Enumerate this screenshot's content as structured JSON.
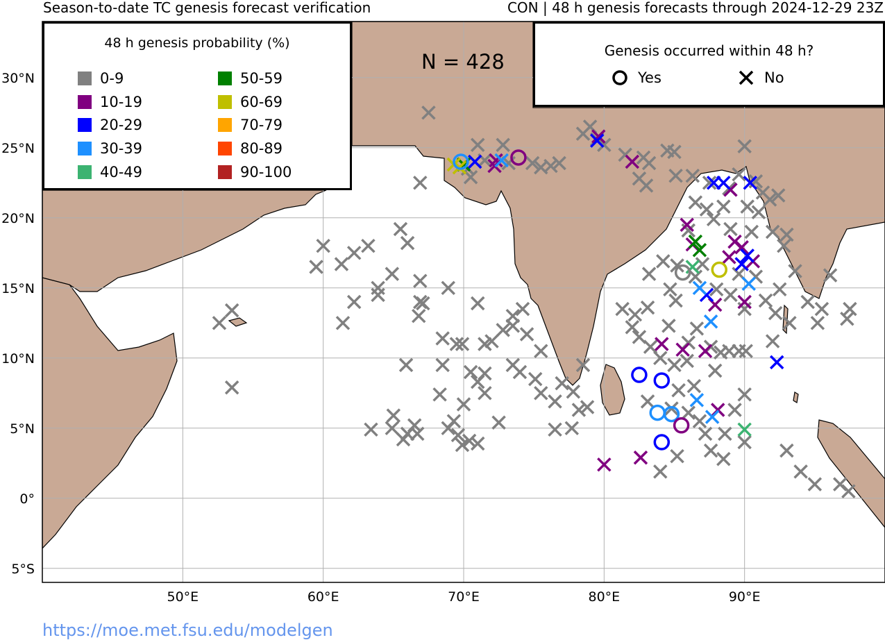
{
  "title_left": "Season-to-date TC genesis forecast verification",
  "title_right": "CON | 48 h genesis forecasts through 2024-12-29 23Z",
  "count_label": "N = 428",
  "url": "https://moe.met.fsu.edu/modelgen",
  "colors": {
    "land": "#c9a995",
    "ocean": "#ffffff",
    "grid": "#b0b0b0",
    "url": "#6495ed"
  },
  "axes": {
    "lat_labels": [
      "30°N",
      "25°N",
      "20°N",
      "15°N",
      "10°N",
      "5°N",
      "0°",
      "5°S"
    ],
    "lon_labels": [
      "50°E",
      "60°E",
      "70°E",
      "80°E",
      "90°E"
    ]
  },
  "prob_legend": {
    "title": "48 h genesis probability (%)",
    "items": [
      {
        "label": "0-9",
        "color": "#808080"
      },
      {
        "label": "10-19",
        "color": "#800080"
      },
      {
        "label": "20-29",
        "color": "#0000ff"
      },
      {
        "label": "30-39",
        "color": "#1e90ff"
      },
      {
        "label": "40-49",
        "color": "#3cb371"
      },
      {
        "label": "50-59",
        "color": "#008000"
      },
      {
        "label": "60-69",
        "color": "#bfbf00"
      },
      {
        "label": "70-79",
        "color": "#ffa500"
      },
      {
        "label": "80-89",
        "color": "#ff4500"
      },
      {
        "label": "90-100",
        "color": "#b22222"
      }
    ]
  },
  "genesis_legend": {
    "title": "Genesis occurred within 48 h?",
    "yes_label": "Yes",
    "no_label": "No"
  },
  "map_data": {
    "extent": {
      "lon": [
        40,
        100
      ],
      "lat": [
        -6,
        34
      ]
    },
    "yes": [
      {
        "lon": 69.8,
        "lat": 24.0,
        "c": 3
      },
      {
        "lon": 73.9,
        "lat": 24.3,
        "c": 1
      },
      {
        "lon": 82.5,
        "lat": 8.8,
        "c": 2
      },
      {
        "lon": 84.1,
        "lat": 8.4,
        "c": 2
      },
      {
        "lon": 83.8,
        "lat": 6.1,
        "c": 3
      },
      {
        "lon": 84.8,
        "lat": 6.0,
        "c": 3
      },
      {
        "lon": 85.5,
        "lat": 5.2,
        "c": 1
      },
      {
        "lon": 84.1,
        "lat": 4.0,
        "c": 2
      },
      {
        "lon": 85.6,
        "lat": 16.1,
        "c": 0
      },
      {
        "lon": 88.2,
        "lat": 16.3,
        "c": 6
      }
    ],
    "no": [
      {
        "lon": 67.5,
        "lat": 27.5,
        "c": 0
      },
      {
        "lon": 66.9,
        "lat": 22.5,
        "c": 0
      },
      {
        "lon": 71.0,
        "lat": 25.2,
        "c": 0
      },
      {
        "lon": 72.8,
        "lat": 25.2,
        "c": 0
      },
      {
        "lon": 71.5,
        "lat": 24.1,
        "c": 0
      },
      {
        "lon": 70.3,
        "lat": 23.5,
        "c": 0
      },
      {
        "lon": 70.5,
        "lat": 22.9,
        "c": 0
      },
      {
        "lon": 73.2,
        "lat": 23.9,
        "c": 0
      },
      {
        "lon": 74.9,
        "lat": 23.9,
        "c": 0
      },
      {
        "lon": 75.5,
        "lat": 23.6,
        "c": 0
      },
      {
        "lon": 76.2,
        "lat": 23.7,
        "c": 0
      },
      {
        "lon": 76.8,
        "lat": 23.9,
        "c": 0
      },
      {
        "lon": 78.5,
        "lat": 26.0,
        "c": 0
      },
      {
        "lon": 79.0,
        "lat": 26.5,
        "c": 0
      },
      {
        "lon": 79.5,
        "lat": 25.6,
        "c": 0
      },
      {
        "lon": 80.0,
        "lat": 25.2,
        "c": 0
      },
      {
        "lon": 81.5,
        "lat": 24.5,
        "c": 0
      },
      {
        "lon": 82.8,
        "lat": 24.3,
        "c": 0
      },
      {
        "lon": 83.2,
        "lat": 23.9,
        "c": 0
      },
      {
        "lon": 84.5,
        "lat": 24.8,
        "c": 0
      },
      {
        "lon": 85.0,
        "lat": 24.7,
        "c": 0
      },
      {
        "lon": 82.5,
        "lat": 22.8,
        "c": 0
      },
      {
        "lon": 83.0,
        "lat": 22.3,
        "c": 0
      },
      {
        "lon": 85.1,
        "lat": 23.0,
        "c": 0
      },
      {
        "lon": 86.3,
        "lat": 23.0,
        "c": 0
      },
      {
        "lon": 87.5,
        "lat": 22.5,
        "c": 0
      },
      {
        "lon": 88.9,
        "lat": 22.1,
        "c": 0
      },
      {
        "lon": 89.6,
        "lat": 23.1,
        "c": 0
      },
      {
        "lon": 90.0,
        "lat": 25.1,
        "c": 0
      },
      {
        "lon": 90.8,
        "lat": 22.6,
        "c": 0
      },
      {
        "lon": 91.3,
        "lat": 21.8,
        "c": 0
      },
      {
        "lon": 91.8,
        "lat": 21.3,
        "c": 0
      },
      {
        "lon": 92.4,
        "lat": 21.6,
        "c": 0
      },
      {
        "lon": 86.5,
        "lat": 21.1,
        "c": 0
      },
      {
        "lon": 87.3,
        "lat": 20.6,
        "c": 0
      },
      {
        "lon": 88.5,
        "lat": 20.8,
        "c": 0
      },
      {
        "lon": 90.2,
        "lat": 20.8,
        "c": 0
      },
      {
        "lon": 91.0,
        "lat": 20.4,
        "c": 0
      },
      {
        "lon": 86.0,
        "lat": 19.1,
        "c": 0
      },
      {
        "lon": 87.8,
        "lat": 19.9,
        "c": 0
      },
      {
        "lon": 89.0,
        "lat": 19.2,
        "c": 0
      },
      {
        "lon": 90.5,
        "lat": 19.0,
        "c": 0
      },
      {
        "lon": 92.0,
        "lat": 19.0,
        "c": 0
      },
      {
        "lon": 93.0,
        "lat": 18.8,
        "c": 0
      },
      {
        "lon": 92.8,
        "lat": 18.0,
        "c": 0
      },
      {
        "lon": 93.6,
        "lat": 16.2,
        "c": 0
      },
      {
        "lon": 96.1,
        "lat": 15.9,
        "c": 0
      },
      {
        "lon": 92.5,
        "lat": 14.9,
        "c": 0
      },
      {
        "lon": 91.5,
        "lat": 14.1,
        "c": 0
      },
      {
        "lon": 92.2,
        "lat": 13.2,
        "c": 0
      },
      {
        "lon": 93.2,
        "lat": 12.5,
        "c": 0
      },
      {
        "lon": 94.5,
        "lat": 14.0,
        "c": 0
      },
      {
        "lon": 95.5,
        "lat": 13.5,
        "c": 0
      },
      {
        "lon": 95.2,
        "lat": 12.5,
        "c": 0
      },
      {
        "lon": 97.5,
        "lat": 13.5,
        "c": 0
      },
      {
        "lon": 97.3,
        "lat": 12.8,
        "c": 0
      },
      {
        "lon": 92.0,
        "lat": 11.2,
        "c": 0
      },
      {
        "lon": 84.2,
        "lat": 16.9,
        "c": 0
      },
      {
        "lon": 83.2,
        "lat": 16.0,
        "c": 0
      },
      {
        "lon": 85.2,
        "lat": 16.6,
        "c": 0
      },
      {
        "lon": 86.5,
        "lat": 15.8,
        "c": 0
      },
      {
        "lon": 87.0,
        "lat": 16.7,
        "c": 0
      },
      {
        "lon": 89.6,
        "lat": 16.0,
        "c": 0
      },
      {
        "lon": 90.8,
        "lat": 15.8,
        "c": 0
      },
      {
        "lon": 85.1,
        "lat": 14.1,
        "c": 0
      },
      {
        "lon": 84.7,
        "lat": 14.9,
        "c": 0
      },
      {
        "lon": 88.0,
        "lat": 14.9,
        "c": 0
      },
      {
        "lon": 89.0,
        "lat": 14.5,
        "c": 0
      },
      {
        "lon": 90.0,
        "lat": 13.5,
        "c": 0
      },
      {
        "lon": 81.3,
        "lat": 13.5,
        "c": 0
      },
      {
        "lon": 82.2,
        "lat": 13.1,
        "c": 0
      },
      {
        "lon": 82.0,
        "lat": 12.2,
        "c": 0
      },
      {
        "lon": 82.5,
        "lat": 11.5,
        "c": 0
      },
      {
        "lon": 83.1,
        "lat": 13.6,
        "c": 0
      },
      {
        "lon": 84.6,
        "lat": 12.3,
        "c": 0
      },
      {
        "lon": 83.3,
        "lat": 10.8,
        "c": 0
      },
      {
        "lon": 84.0,
        "lat": 10.0,
        "c": 0
      },
      {
        "lon": 85.0,
        "lat": 9.5,
        "c": 0
      },
      {
        "lon": 85.9,
        "lat": 9.8,
        "c": 0
      },
      {
        "lon": 86.0,
        "lat": 11.1,
        "c": 0
      },
      {
        "lon": 86.6,
        "lat": 12.1,
        "c": 0
      },
      {
        "lon": 87.6,
        "lat": 10.8,
        "c": 0
      },
      {
        "lon": 88.3,
        "lat": 10.4,
        "c": 0
      },
      {
        "lon": 88.9,
        "lat": 10.5,
        "c": 0
      },
      {
        "lon": 89.6,
        "lat": 10.5,
        "c": 0
      },
      {
        "lon": 90.1,
        "lat": 10.5,
        "c": 0
      },
      {
        "lon": 87.9,
        "lat": 9.1,
        "c": 0
      },
      {
        "lon": 86.4,
        "lat": 8.0,
        "c": 0
      },
      {
        "lon": 85.3,
        "lat": 7.7,
        "c": 0
      },
      {
        "lon": 83.1,
        "lat": 6.9,
        "c": 0
      },
      {
        "lon": 84.8,
        "lat": 6.4,
        "c": 0
      },
      {
        "lon": 86.0,
        "lat": 6.1,
        "c": 0
      },
      {
        "lon": 86.8,
        "lat": 5.5,
        "c": 0
      },
      {
        "lon": 87.2,
        "lat": 4.6,
        "c": 0
      },
      {
        "lon": 88.6,
        "lat": 4.6,
        "c": 0
      },
      {
        "lon": 89.3,
        "lat": 6.3,
        "c": 0
      },
      {
        "lon": 90.0,
        "lat": 7.4,
        "c": 0
      },
      {
        "lon": 90.0,
        "lat": 4.0,
        "c": 0
      },
      {
        "lon": 88.5,
        "lat": 2.8,
        "c": 0
      },
      {
        "lon": 87.6,
        "lat": 3.4,
        "c": 0
      },
      {
        "lon": 85.2,
        "lat": 3.0,
        "c": 0
      },
      {
        "lon": 84.0,
        "lat": 1.9,
        "c": 0
      },
      {
        "lon": 93.0,
        "lat": 3.4,
        "c": 0
      },
      {
        "lon": 94.0,
        "lat": 1.9,
        "c": 0
      },
      {
        "lon": 95.0,
        "lat": 1.0,
        "c": 0
      },
      {
        "lon": 96.8,
        "lat": 1.0,
        "c": 0
      },
      {
        "lon": 97.4,
        "lat": 0.5,
        "c": 0
      },
      {
        "lon": 77.0,
        "lat": 8.2,
        "c": 0
      },
      {
        "lon": 77.8,
        "lat": 7.6,
        "c": 0
      },
      {
        "lon": 76.5,
        "lat": 6.9,
        "c": 0
      },
      {
        "lon": 78.2,
        "lat": 6.3,
        "c": 0
      },
      {
        "lon": 78.8,
        "lat": 6.5,
        "c": 0
      },
      {
        "lon": 77.7,
        "lat": 5.0,
        "c": 0
      },
      {
        "lon": 76.5,
        "lat": 4.9,
        "c": 0
      },
      {
        "lon": 78.5,
        "lat": 9.5,
        "c": 0
      },
      {
        "lon": 75.1,
        "lat": 8.5,
        "c": 0
      },
      {
        "lon": 75.5,
        "lat": 7.5,
        "c": 0
      },
      {
        "lon": 74.0,
        "lat": 9.0,
        "c": 0
      },
      {
        "lon": 73.5,
        "lat": 9.5,
        "c": 0
      },
      {
        "lon": 75.5,
        "lat": 10.5,
        "c": 0
      },
      {
        "lon": 74.5,
        "lat": 11.7,
        "c": 0
      },
      {
        "lon": 73.5,
        "lat": 12.3,
        "c": 0
      },
      {
        "lon": 72.8,
        "lat": 12.0,
        "c": 0
      },
      {
        "lon": 74.2,
        "lat": 13.5,
        "c": 0
      },
      {
        "lon": 73.5,
        "lat": 13.0,
        "c": 0
      },
      {
        "lon": 72.0,
        "lat": 11.2,
        "c": 0
      },
      {
        "lon": 71.5,
        "lat": 11.0,
        "c": 0
      },
      {
        "lon": 71.0,
        "lat": 13.9,
        "c": 0
      },
      {
        "lon": 70.5,
        "lat": 9.0,
        "c": 0
      },
      {
        "lon": 71.5,
        "lat": 8.9,
        "c": 0
      },
      {
        "lon": 71.0,
        "lat": 8.3,
        "c": 0
      },
      {
        "lon": 71.5,
        "lat": 7.5,
        "c": 0
      },
      {
        "lon": 69.5,
        "lat": 11.0,
        "c": 0
      },
      {
        "lon": 69.9,
        "lat": 11.0,
        "c": 0
      },
      {
        "lon": 68.5,
        "lat": 11.4,
        "c": 0
      },
      {
        "lon": 68.5,
        "lat": 9.5,
        "c": 0
      },
      {
        "lon": 68.3,
        "lat": 7.4,
        "c": 0
      },
      {
        "lon": 70.0,
        "lat": 6.7,
        "c": 0
      },
      {
        "lon": 69.3,
        "lat": 5.5,
        "c": 0
      },
      {
        "lon": 68.9,
        "lat": 5.0,
        "c": 0
      },
      {
        "lon": 69.6,
        "lat": 4.5,
        "c": 0
      },
      {
        "lon": 69.9,
        "lat": 3.8,
        "c": 0
      },
      {
        "lon": 70.4,
        "lat": 4.1,
        "c": 0
      },
      {
        "lon": 71.0,
        "lat": 3.9,
        "c": 0
      },
      {
        "lon": 72.5,
        "lat": 5.4,
        "c": 0
      },
      {
        "lon": 66.0,
        "lat": 4.6,
        "c": 0
      },
      {
        "lon": 66.5,
        "lat": 5.2,
        "c": 0
      },
      {
        "lon": 65.7,
        "lat": 4.2,
        "c": 0
      },
      {
        "lon": 66.7,
        "lat": 4.6,
        "c": 0
      },
      {
        "lon": 64.9,
        "lat": 5.0,
        "c": 0
      },
      {
        "lon": 65.0,
        "lat": 5.9,
        "c": 0
      },
      {
        "lon": 63.4,
        "lat": 4.9,
        "c": 0
      },
      {
        "lon": 65.9,
        "lat": 9.5,
        "c": 0
      },
      {
        "lon": 66.8,
        "lat": 13.0,
        "c": 0
      },
      {
        "lon": 66.9,
        "lat": 14.0,
        "c": 0
      },
      {
        "lon": 67.1,
        "lat": 13.9,
        "c": 0
      },
      {
        "lon": 66.9,
        "lat": 15.5,
        "c": 0
      },
      {
        "lon": 68.9,
        "lat": 15.0,
        "c": 0
      },
      {
        "lon": 66.0,
        "lat": 18.2,
        "c": 0
      },
      {
        "lon": 65.5,
        "lat": 19.2,
        "c": 0
      },
      {
        "lon": 62.2,
        "lat": 17.5,
        "c": 0
      },
      {
        "lon": 61.3,
        "lat": 16.7,
        "c": 0
      },
      {
        "lon": 63.2,
        "lat": 18.0,
        "c": 0
      },
      {
        "lon": 60.0,
        "lat": 18.0,
        "c": 0
      },
      {
        "lon": 59.5,
        "lat": 16.5,
        "c": 0
      },
      {
        "lon": 64.9,
        "lat": 16.0,
        "c": 0
      },
      {
        "lon": 63.9,
        "lat": 15.0,
        "c": 0
      },
      {
        "lon": 63.9,
        "lat": 14.5,
        "c": 0
      },
      {
        "lon": 62.2,
        "lat": 14.0,
        "c": 0
      },
      {
        "lon": 61.4,
        "lat": 12.5,
        "c": 0
      },
      {
        "lon": 53.5,
        "lat": 13.4,
        "c": 0
      },
      {
        "lon": 52.6,
        "lat": 12.5,
        "c": 0
      },
      {
        "lon": 53.5,
        "lat": 7.9,
        "c": 0
      },
      {
        "lon": 82.0,
        "lat": 24.0,
        "c": 1
      },
      {
        "lon": 72.3,
        "lat": 24.1,
        "c": 1
      },
      {
        "lon": 72.2,
        "lat": 23.7,
        "c": 1
      },
      {
        "lon": 79.6,
        "lat": 25.8,
        "c": 1
      },
      {
        "lon": 85.9,
        "lat": 19.5,
        "c": 1
      },
      {
        "lon": 86.3,
        "lat": 18.1,
        "c": 1
      },
      {
        "lon": 89.0,
        "lat": 22.0,
        "c": 1
      },
      {
        "lon": 89.3,
        "lat": 18.3,
        "c": 1
      },
      {
        "lon": 89.8,
        "lat": 17.9,
        "c": 1
      },
      {
        "lon": 88.9,
        "lat": 17.2,
        "c": 1
      },
      {
        "lon": 90.6,
        "lat": 16.9,
        "c": 1
      },
      {
        "lon": 87.9,
        "lat": 13.8,
        "c": 1
      },
      {
        "lon": 90.0,
        "lat": 14.0,
        "c": 1
      },
      {
        "lon": 84.1,
        "lat": 11.0,
        "c": 1
      },
      {
        "lon": 85.6,
        "lat": 10.6,
        "c": 1
      },
      {
        "lon": 87.2,
        "lat": 10.5,
        "c": 1
      },
      {
        "lon": 88.1,
        "lat": 6.3,
        "c": 1
      },
      {
        "lon": 80.0,
        "lat": 2.4,
        "c": 1
      },
      {
        "lon": 82.6,
        "lat": 2.9,
        "c": 1
      },
      {
        "lon": 70.8,
        "lat": 24.0,
        "c": 2
      },
      {
        "lon": 79.5,
        "lat": 25.5,
        "c": 2
      },
      {
        "lon": 87.8,
        "lat": 22.5,
        "c": 2
      },
      {
        "lon": 88.5,
        "lat": 22.5,
        "c": 2
      },
      {
        "lon": 90.4,
        "lat": 22.5,
        "c": 2
      },
      {
        "lon": 90.2,
        "lat": 17.3,
        "c": 2
      },
      {
        "lon": 89.8,
        "lat": 16.7,
        "c": 2
      },
      {
        "lon": 87.3,
        "lat": 14.5,
        "c": 2
      },
      {
        "lon": 92.3,
        "lat": 9.7,
        "c": 2
      },
      {
        "lon": 72.7,
        "lat": 24.1,
        "c": 3
      },
      {
        "lon": 86.8,
        "lat": 15.0,
        "c": 3
      },
      {
        "lon": 87.6,
        "lat": 12.6,
        "c": 3
      },
      {
        "lon": 86.6,
        "lat": 7.0,
        "c": 3
      },
      {
        "lon": 87.7,
        "lat": 5.8,
        "c": 3
      },
      {
        "lon": 90.3,
        "lat": 15.3,
        "c": 3
      },
      {
        "lon": 86.3,
        "lat": 16.5,
        "c": 4
      },
      {
        "lon": 90.0,
        "lat": 4.9,
        "c": 4
      },
      {
        "lon": 70.0,
        "lat": 23.8,
        "c": 5
      },
      {
        "lon": 86.5,
        "lat": 18.3,
        "c": 5
      },
      {
        "lon": 86.8,
        "lat": 17.7,
        "c": 5
      },
      {
        "lon": 69.3,
        "lat": 23.8,
        "c": 6
      },
      {
        "lon": 69.7,
        "lat": 23.6,
        "c": 6
      }
    ]
  }
}
